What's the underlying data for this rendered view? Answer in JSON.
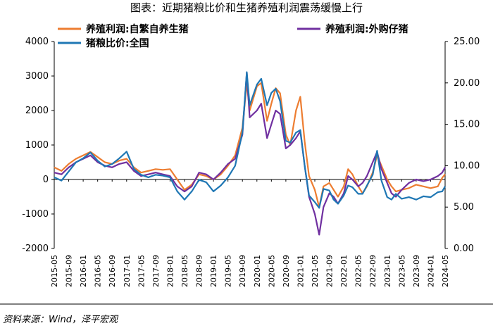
{
  "title": "图表：近期猪粮比价和生猪养殖利润震荡缓慢上行",
  "source": "资料来源：Wind，泽平宏观",
  "chart_data": {
    "type": "line",
    "xlabels": [
      "2015-05",
      "2015-09",
      "2016-01",
      "2016-05",
      "2016-09",
      "2017-01",
      "2017-05",
      "2017-09",
      "2018-01",
      "2018-05",
      "2018-09",
      "2019-01",
      "2019-05",
      "2019-09",
      "2020-01",
      "2020-05",
      "2020-09",
      "2021-01",
      "2021-05",
      "2021-09",
      "2022-01",
      "2022-05",
      "2022-09",
      "2023-01",
      "2023-05",
      "2023-09",
      "2024-01",
      "2024-05"
    ],
    "y_left": {
      "range": [
        -2000,
        4000
      ],
      "ticks": [
        -2000,
        -1000,
        0,
        1000,
        2000,
        3000,
        4000
      ]
    },
    "y_right": {
      "range": [
        0,
        25
      ],
      "ticks": [
        "0.00",
        "5.00",
        "10.00",
        "15.00",
        "20.00",
        "25.00"
      ]
    },
    "series": [
      {
        "name": "养殖利润:自繁自养生猪",
        "axis": "left",
        "color": "#ED7D31",
        "points": [
          [
            0,
            350
          ],
          [
            0.5,
            250
          ],
          [
            1,
            450
          ],
          [
            1.5,
            600
          ],
          [
            2,
            700
          ],
          [
            2.5,
            800
          ],
          [
            3,
            650
          ],
          [
            3.5,
            500
          ],
          [
            4,
            450
          ],
          [
            4.5,
            550
          ],
          [
            5,
            600
          ],
          [
            5.5,
            350
          ],
          [
            6,
            200
          ],
          [
            6.5,
            250
          ],
          [
            7,
            300
          ],
          [
            7.5,
            280
          ],
          [
            8,
            300
          ],
          [
            8.5,
            0
          ],
          [
            9,
            -300
          ],
          [
            9.5,
            -150
          ],
          [
            10,
            150
          ],
          [
            10.5,
            100
          ],
          [
            11,
            0
          ],
          [
            11.5,
            150
          ],
          [
            12,
            400
          ],
          [
            12.5,
            700
          ],
          [
            13,
            1500
          ],
          [
            13.3,
            2800
          ],
          [
            13.5,
            2000
          ],
          [
            14,
            2700
          ],
          [
            14.3,
            2800
          ],
          [
            14.7,
            1700
          ],
          [
            15,
            2200
          ],
          [
            15.3,
            2650
          ],
          [
            15.6,
            2500
          ],
          [
            16,
            1300
          ],
          [
            16.3,
            1000
          ],
          [
            16.7,
            2000
          ],
          [
            17,
            2400
          ],
          [
            17.3,
            1100
          ],
          [
            17.6,
            100
          ],
          [
            18,
            -300
          ],
          [
            18.3,
            -800
          ],
          [
            18.6,
            -200
          ],
          [
            19,
            -100
          ],
          [
            19.3,
            -300
          ],
          [
            19.6,
            -500
          ],
          [
            20,
            -200
          ],
          [
            20.3,
            300
          ],
          [
            20.6,
            150
          ],
          [
            21,
            -200
          ],
          [
            21.3,
            -400
          ],
          [
            21.6,
            -200
          ],
          [
            22,
            200
          ],
          [
            22.3,
            700
          ],
          [
            22.6,
            400
          ],
          [
            23,
            0
          ],
          [
            23.3,
            -200
          ],
          [
            23.6,
            -350
          ],
          [
            24,
            -300
          ],
          [
            24.5,
            -250
          ],
          [
            25,
            -150
          ],
          [
            25.5,
            -200
          ],
          [
            26,
            -250
          ],
          [
            26.5,
            -200
          ],
          [
            26.8,
            50
          ],
          [
            27,
            150
          ]
        ]
      },
      {
        "name": "养殖利润:外购仔猪",
        "axis": "left",
        "color": "#7030A0",
        "points": [
          [
            0,
            200
          ],
          [
            0.5,
            150
          ],
          [
            1,
            350
          ],
          [
            1.5,
            500
          ],
          [
            2,
            600
          ],
          [
            2.5,
            700
          ],
          [
            3,
            500
          ],
          [
            3.5,
            400
          ],
          [
            4,
            350
          ],
          [
            4.5,
            450
          ],
          [
            5,
            500
          ],
          [
            5.5,
            250
          ],
          [
            6,
            100
          ],
          [
            6.5,
            150
          ],
          [
            7,
            200
          ],
          [
            7.5,
            150
          ],
          [
            8,
            100
          ],
          [
            8.5,
            -200
          ],
          [
            9,
            -350
          ],
          [
            9.5,
            -200
          ],
          [
            10,
            200
          ],
          [
            10.5,
            150
          ],
          [
            11,
            0
          ],
          [
            11.5,
            200
          ],
          [
            12,
            450
          ],
          [
            12.5,
            600
          ],
          [
            13,
            1300
          ],
          [
            13.3,
            3100
          ],
          [
            13.5,
            1800
          ],
          [
            14,
            2000
          ],
          [
            14.3,
            2200
          ],
          [
            14.7,
            1200
          ],
          [
            15,
            1600
          ],
          [
            15.3,
            2000
          ],
          [
            15.6,
            1900
          ],
          [
            16,
            900
          ],
          [
            16.3,
            1000
          ],
          [
            16.7,
            1200
          ],
          [
            17,
            1400
          ],
          [
            17.3,
            400
          ],
          [
            17.6,
            -500
          ],
          [
            18,
            -1000
          ],
          [
            18.3,
            -1600
          ],
          [
            18.6,
            -800
          ],
          [
            19,
            -400
          ],
          [
            19.3,
            -500
          ],
          [
            19.6,
            -700
          ],
          [
            20,
            -400
          ],
          [
            20.3,
            100
          ],
          [
            20.6,
            0
          ],
          [
            21,
            -200
          ],
          [
            21.3,
            -100
          ],
          [
            21.6,
            100
          ],
          [
            22,
            500
          ],
          [
            22.3,
            800
          ],
          [
            22.6,
            300
          ],
          [
            23,
            -100
          ],
          [
            23.3,
            -400
          ],
          [
            23.6,
            -500
          ],
          [
            24,
            -300
          ],
          [
            24.5,
            -100
          ],
          [
            25,
            0
          ],
          [
            25.5,
            -50
          ],
          [
            26,
            0
          ],
          [
            26.5,
            100
          ],
          [
            26.8,
            200
          ],
          [
            27,
            350
          ]
        ]
      },
      {
        "name": "猪粮比价:全国",
        "axis": "right",
        "color": "#1F77B4",
        "points": [
          [
            0,
            8.6
          ],
          [
            0.5,
            8.2
          ],
          [
            1,
            9.3
          ],
          [
            1.5,
            10.4
          ],
          [
            2,
            10.9
          ],
          [
            2.5,
            11.6
          ],
          [
            3,
            10.6
          ],
          [
            3.5,
            9.9
          ],
          [
            4,
            10.2
          ],
          [
            4.5,
            10.9
          ],
          [
            5,
            11.7
          ],
          [
            5.5,
            9.6
          ],
          [
            6,
            8.9
          ],
          [
            6.5,
            8.6
          ],
          [
            7,
            8.9
          ],
          [
            7.5,
            8.8
          ],
          [
            8,
            8.6
          ],
          [
            8.5,
            6.9
          ],
          [
            9,
            5.9
          ],
          [
            9.5,
            6.9
          ],
          [
            10,
            8.3
          ],
          [
            10.5,
            8.0
          ],
          [
            11,
            6.9
          ],
          [
            11.5,
            7.6
          ],
          [
            12,
            8.6
          ],
          [
            12.5,
            10.0
          ],
          [
            13,
            14.0
          ],
          [
            13.3,
            21.3
          ],
          [
            13.5,
            17.3
          ],
          [
            14,
            19.8
          ],
          [
            14.3,
            20.5
          ],
          [
            14.7,
            17.3
          ],
          [
            15,
            18.8
          ],
          [
            15.3,
            19.3
          ],
          [
            15.6,
            17.8
          ],
          [
            16,
            13.0
          ],
          [
            16.3,
            12.8
          ],
          [
            16.7,
            14.0
          ],
          [
            17,
            14.3
          ],
          [
            17.3,
            10.0
          ],
          [
            17.6,
            6.4
          ],
          [
            18,
            5.6
          ],
          [
            18.3,
            4.9
          ],
          [
            18.6,
            7.2
          ],
          [
            19,
            7.0
          ],
          [
            19.3,
            5.9
          ],
          [
            19.6,
            5.4
          ],
          [
            20,
            6.4
          ],
          [
            20.3,
            7.6
          ],
          [
            20.6,
            7.4
          ],
          [
            21,
            6.6
          ],
          [
            21.3,
            6.6
          ],
          [
            21.6,
            7.6
          ],
          [
            22,
            8.9
          ],
          [
            22.3,
            11.8
          ],
          [
            22.6,
            8.2
          ],
          [
            23,
            6.2
          ],
          [
            23.3,
            5.9
          ],
          [
            23.6,
            6.6
          ],
          [
            24,
            6.0
          ],
          [
            24.5,
            6.2
          ],
          [
            25,
            5.9
          ],
          [
            25.5,
            6.3
          ],
          [
            26,
            6.2
          ],
          [
            26.5,
            6.8
          ],
          [
            26.8,
            6.9
          ],
          [
            27,
            7.5
          ]
        ]
      }
    ]
  }
}
